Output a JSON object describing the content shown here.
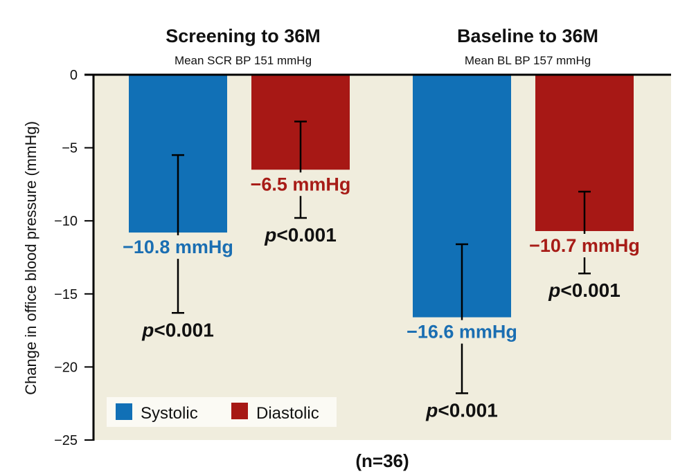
{
  "chart_data": {
    "type": "bar",
    "title": "",
    "xlabel": "(n=36)",
    "ylabel": "Change in office blood pressure (mmHg)",
    "ylim": [
      -25,
      0
    ],
    "yticks": [
      0,
      -5,
      -10,
      -15,
      -20,
      -25
    ],
    "ytick_labels": [
      "0",
      "−5",
      "−10",
      "−15",
      "−20",
      "−25"
    ],
    "grid": false,
    "legend": {
      "placement": "bottom-left",
      "entries": [
        {
          "name": "Systolic",
          "color": "#1170B6"
        },
        {
          "name": "Diastolic",
          "color": "#A71815"
        }
      ]
    },
    "categories": [
      {
        "title": "Screening to 36M",
        "subtitle": "Mean SCR BP 151 mmHg"
      },
      {
        "title": "Baseline to 36M",
        "subtitle": "Mean BL BP 157 mmHg"
      }
    ],
    "series": [
      {
        "name": "Systolic",
        "color": "#1170B6",
        "label_color": "#1A6EB2",
        "values": [
          -10.8,
          -16.6
        ],
        "error_low": [
          -16.3,
          -21.8
        ],
        "error_high": [
          -5.5,
          -11.6
        ],
        "value_labels": [
          "−10.8 mmHg",
          "−16.6 mmHg"
        ],
        "p_labels": [
          "p<0.001",
          "p<0.001"
        ]
      },
      {
        "name": "Diastolic",
        "color": "#A71815",
        "label_color": "#A71C17",
        "values": [
          -6.5,
          -10.7
        ],
        "error_low": [
          -9.8,
          -13.6
        ],
        "error_high": [
          -3.2,
          -8.0
        ],
        "value_labels": [
          "−6.5 mmHg",
          "−10.7 mmHg"
        ],
        "p_labels": [
          "p<0.001",
          "p<0.001"
        ]
      }
    ],
    "plot_background": "#F0EDDD"
  }
}
